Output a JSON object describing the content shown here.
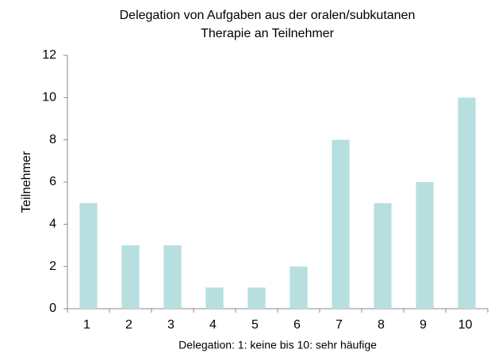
{
  "chart_data": {
    "type": "bar",
    "title": [
      "Delegation von Aufgaben aus der oralen/subkutanen",
      "Therapie an Teilnehmer"
    ],
    "x_label": "Delegation: 1: keine bis 10: sehr häufige",
    "y_label": "Teilnehmer",
    "categories": [
      "1",
      "2",
      "3",
      "4",
      "5",
      "6",
      "7",
      "8",
      "9",
      "10"
    ],
    "values": [
      5,
      3,
      3,
      1,
      1,
      2,
      8,
      5,
      6,
      10
    ],
    "color": "#b7dfe0",
    "ylim": [
      0,
      12
    ],
    "yticks": [
      0,
      2,
      4,
      6,
      8,
      10,
      12
    ],
    "grid": false
  }
}
